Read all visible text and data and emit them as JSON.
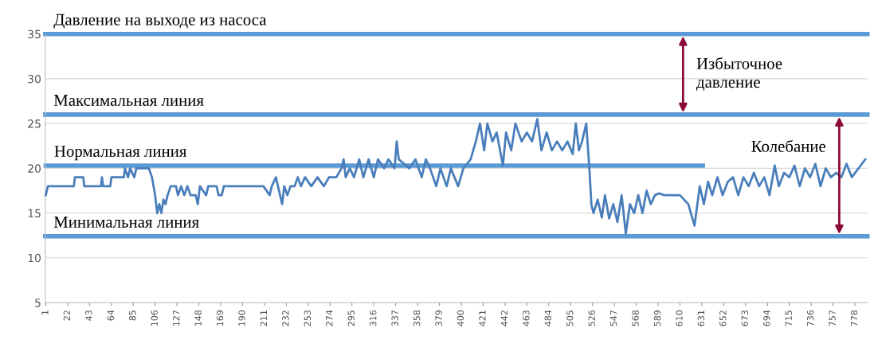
{
  "chart_data": {
    "type": "line",
    "x": [
      1,
      3,
      28,
      29,
      37,
      38,
      54,
      55,
      56,
      63,
      64,
      76,
      77,
      80,
      82,
      86,
      88,
      100,
      103,
      106,
      108,
      110,
      112,
      114,
      116,
      118,
      121,
      126,
      128,
      131,
      134,
      137,
      140,
      145,
      147,
      149,
      155,
      157,
      165,
      167,
      170,
      172,
      190,
      210,
      216,
      218,
      222,
      224,
      228,
      230,
      233,
      236,
      240,
      243,
      246,
      250,
      256,
      262,
      268,
      273,
      280,
      285,
      287,
      289,
      293,
      297,
      302,
      306,
      311,
      316,
      320,
      326,
      330,
      336,
      338,
      340,
      350,
      356,
      362,
      366,
      370,
      376,
      380,
      386,
      390,
      397,
      402,
      409,
      414,
      418,
      422,
      425,
      430,
      434,
      440,
      443,
      448,
      452,
      458,
      463,
      468,
      473,
      477,
      482,
      487,
      492,
      497,
      502,
      507,
      510,
      513,
      516,
      520,
      523,
      525,
      527,
      531,
      535,
      538,
      542,
      546,
      550,
      554,
      558,
      562,
      566,
      570,
      574,
      578,
      582,
      586,
      590,
      595,
      600,
      610,
      618,
      624,
      629,
      633,
      637,
      641,
      646,
      651,
      656,
      661,
      666,
      671,
      676,
      681,
      686,
      691,
      696,
      701,
      705,
      710,
      715,
      720,
      725,
      730,
      735,
      740,
      745,
      750,
      755,
      760,
      765,
      770,
      775,
      788
    ],
    "series": [
      {
        "color": "#4a7ebb",
        "values": [
          17,
          18,
          18,
          19,
          19,
          18,
          18,
          19,
          18,
          18,
          19,
          19,
          20,
          19,
          20,
          19,
          20,
          20,
          19,
          17,
          15,
          16,
          15,
          16.5,
          16,
          17,
          18,
          18,
          17,
          18,
          17,
          18,
          17,
          17,
          16,
          18,
          17,
          18,
          18,
          17,
          17,
          18,
          18,
          18,
          17,
          18,
          19,
          18,
          16,
          18,
          17,
          18,
          18,
          19,
          18,
          19,
          18,
          19,
          18,
          19,
          19,
          20,
          21,
          19,
          20,
          19,
          21,
          19,
          21,
          19,
          21,
          20,
          21,
          20,
          23,
          21,
          20,
          21,
          19,
          21,
          20,
          18,
          20,
          18,
          20,
          18,
          20,
          21,
          23,
          25,
          22,
          25,
          23,
          24,
          20.3,
          24,
          22,
          25,
          23,
          24,
          23,
          25.5,
          22,
          24,
          22,
          23,
          22,
          23,
          21.6,
          25,
          22,
          23,
          25,
          20,
          15.9,
          15,
          16.5,
          14.5,
          17,
          14.4,
          16,
          14,
          17,
          12.7,
          16,
          15,
          17,
          15,
          17.5,
          16,
          17,
          17.2,
          17,
          17,
          17,
          16,
          13.6,
          18,
          16,
          18.5,
          17,
          19,
          17,
          18.5,
          19,
          17,
          19,
          18,
          19.5,
          18,
          19,
          17,
          20.3,
          18,
          19.5,
          19,
          20.3,
          18,
          20,
          19,
          20.5,
          18,
          20,
          19,
          19.5,
          19,
          20.5,
          19,
          21
        ]
      },
      {
        "type": "line",
        "name": "Нормальная линия",
        "color": "#5b9bd5",
        "x": [
          1,
          632
        ],
        "values": [
          20.3,
          20.3
        ]
      }
    ],
    "ref_lines": [
      {
        "axis": "y",
        "value": 35,
        "label": "Давление на выходе из насоса",
        "color": "#5b9bd5"
      },
      {
        "axis": "y",
        "value": 26,
        "label": "Максимальная линия",
        "color": "#5b9bd5"
      },
      {
        "axis": "y",
        "value": 12.4,
        "label": "Минимальная линия",
        "color": "#5b9bd5"
      }
    ],
    "annotations": [
      {
        "text": "Избыточное\nдавление",
        "x": 613,
        "y": 35
      },
      {
        "text": "Колебание",
        "x": 763,
        "y": 26
      }
    ],
    "xlim": [
      0.5,
      790
    ],
    "xticks": [
      1,
      22,
      43,
      64,
      85,
      106,
      127,
      148,
      169,
      190,
      211,
      232,
      253,
      274,
      295,
      316,
      337,
      358,
      379,
      400,
      421,
      442,
      463,
      484,
      505,
      526,
      547,
      568,
      589,
      610,
      631,
      652,
      673,
      694,
      715,
      736,
      757,
      778
    ],
    "ylim": [
      5,
      35
    ],
    "yticks": [
      5,
      10,
      15,
      20,
      25,
      30,
      35
    ],
    "grid": "y",
    "marker": "none",
    "line_style": "solid"
  }
}
